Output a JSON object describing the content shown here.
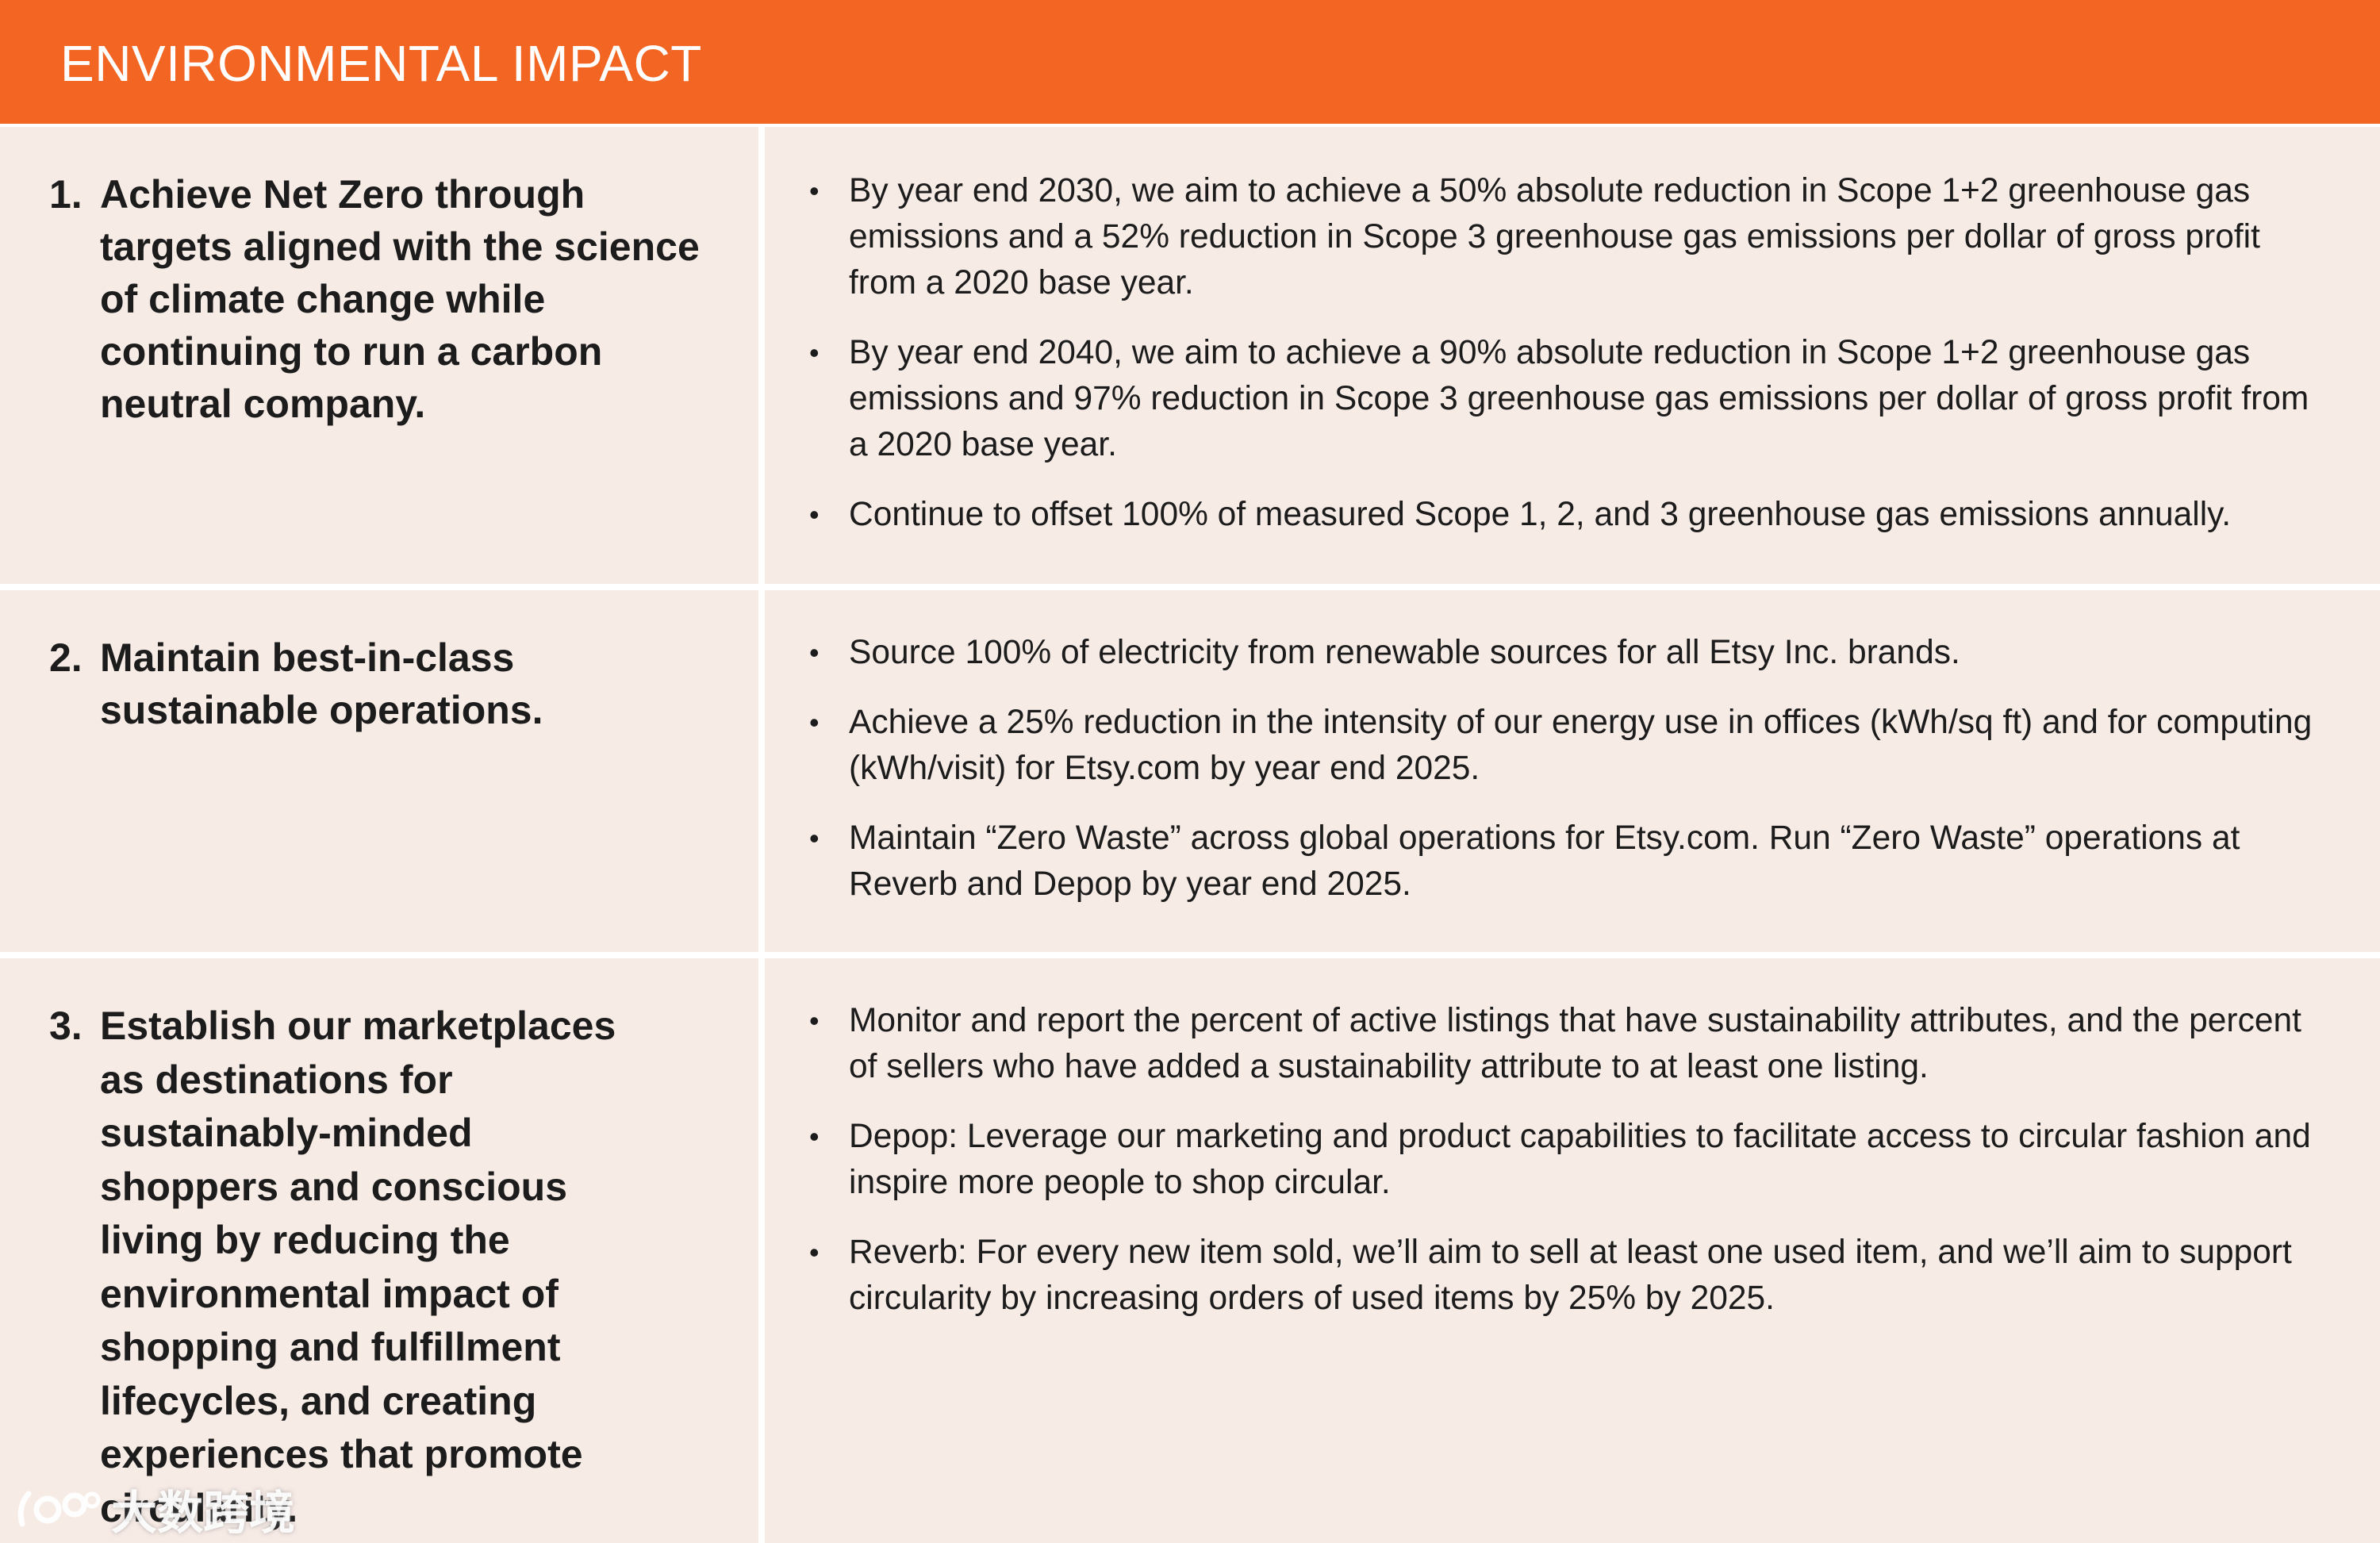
{
  "header": {
    "title": "ENVIRONMENTAL IMPACT"
  },
  "colors": {
    "header_bg": "#f26522",
    "row_bg": "#f7ebe6",
    "divider": "#ffffff"
  },
  "rows": [
    {
      "number": "1.",
      "goal": "Achieve Net Zero through targets aligned with the science of climate change while continuing to run a carbon neutral company.",
      "bullets": [
        "By year end 2030, we aim to achieve a 50% absolute reduction in Scope 1+2 greenhouse gas emissions and a 52% reduction in Scope 3 greenhouse gas emissions per dollar of gross profit from a 2020 base year.",
        "By year end 2040, we aim to achieve a 90% absolute reduction in Scope 1+2 greenhouse gas emissions and 97% reduction in Scope 3 greenhouse gas emissions per dollar of gross profit from a 2020 base year.",
        "Continue to offset 100% of measured Scope 1, 2, and 3 greenhouse gas emissions annually."
      ]
    },
    {
      "number": "2.",
      "goal": "Maintain best-in-class sustainable operations.",
      "bullets": [
        "Source 100% of electricity from renewable sources for all Etsy Inc. brands.",
        "Achieve a 25% reduction in the intensity of our energy use in offices (kWh/sq ft) and for computing (kWh/visit) for Etsy.com by year end 2025.",
        "Maintain “Zero Waste” across global operations for Etsy.com. Run “Zero Waste” operations at Reverb and Depop by year end 2025."
      ]
    },
    {
      "number": "3.",
      "goal": "Establish our marketplaces as destinations for sustainably-minded shoppers and conscious living by reducing the environmental impact of shopping and fulfillment lifecycles, and creating experiences that promote circularity.",
      "bullets": [
        "Monitor and report the percent of active listings that have sustainability attributes, and the percent of sellers who have added a sustainability attribute to at least one listing.",
        "Depop: Leverage our marketing and product capabilities to facilitate access to circular fashion and inspire more people to shop circular.",
        "Reverb: For every new item sold, we’ll aim to sell at least one used item, and we’ll aim to support circularity by increasing orders of used items by 25% by 2025."
      ]
    }
  ],
  "bullet_glyph": "•",
  "watermark": {
    "text": "大数跨境"
  }
}
